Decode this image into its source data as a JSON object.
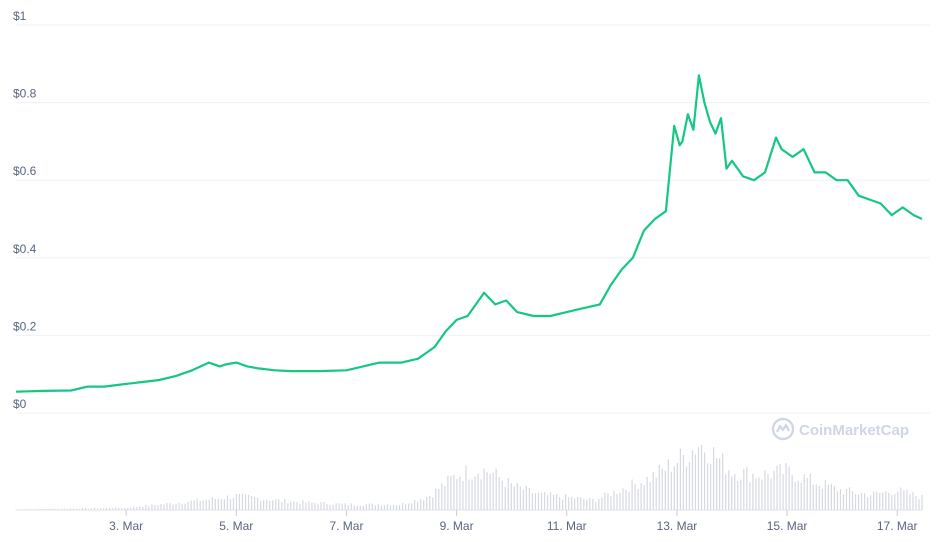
{
  "watermark": {
    "text": "CoinMarketCap",
    "color": "#cfd6e4"
  },
  "colors": {
    "line": "#16c784",
    "grid": "#eef0f4",
    "volume": "#d5d9e0",
    "axis_text": "#58667e"
  },
  "chart_data": {
    "type": "line",
    "title": "",
    "xlabel": "",
    "ylabel": "",
    "y_ticks": [
      "$0",
      "$0.2",
      "$0.4",
      "$0.6",
      "$0.8",
      "$1"
    ],
    "y_tick_values": [
      0,
      0.2,
      0.4,
      0.6,
      0.8,
      1.0
    ],
    "ylim": [
      0,
      1.0
    ],
    "x_ticks": [
      "3. Mar",
      "5. Mar",
      "7. Mar",
      "9. Mar",
      "11. Mar",
      "13. Mar",
      "15. Mar",
      "17. Mar"
    ],
    "x_tick_days": [
      3,
      5,
      7,
      9,
      11,
      13,
      15,
      17
    ],
    "xlim_day": [
      1.0,
      17.45
    ],
    "grid": true,
    "series": [
      {
        "x_day": [
          1.0,
          1.5,
          2.0,
          2.3,
          2.6,
          3.0,
          3.3,
          3.6,
          3.9,
          4.2,
          4.5,
          4.7,
          4.8,
          5.0,
          5.2,
          5.4,
          5.7,
          6.0,
          6.5,
          7.0,
          7.3,
          7.6,
          8.0,
          8.3,
          8.6,
          8.8,
          9.0,
          9.2,
          9.4,
          9.5,
          9.7,
          9.9,
          10.1,
          10.4,
          10.7,
          11.0,
          11.3,
          11.6,
          11.8,
          12.0,
          12.2,
          12.4,
          12.6,
          12.8,
          12.95,
          13.05,
          13.1,
          13.2,
          13.3,
          13.4,
          13.5,
          13.6,
          13.7,
          13.8,
          13.9,
          14.0,
          14.2,
          14.4,
          14.6,
          14.8,
          14.9,
          15.1,
          15.3,
          15.5,
          15.7,
          15.9,
          16.1,
          16.3,
          16.5,
          16.7,
          16.9,
          17.1,
          17.3,
          17.45
        ],
        "y": [
          0.055,
          0.057,
          0.058,
          0.068,
          0.068,
          0.075,
          0.08,
          0.085,
          0.095,
          0.11,
          0.13,
          0.12,
          0.125,
          0.13,
          0.12,
          0.115,
          0.11,
          0.108,
          0.108,
          0.11,
          0.12,
          0.13,
          0.13,
          0.14,
          0.17,
          0.21,
          0.24,
          0.25,
          0.29,
          0.31,
          0.28,
          0.29,
          0.26,
          0.25,
          0.25,
          0.26,
          0.27,
          0.28,
          0.33,
          0.37,
          0.4,
          0.47,
          0.5,
          0.52,
          0.74,
          0.69,
          0.7,
          0.77,
          0.73,
          0.87,
          0.8,
          0.75,
          0.72,
          0.76,
          0.63,
          0.65,
          0.61,
          0.6,
          0.62,
          0.71,
          0.68,
          0.66,
          0.68,
          0.62,
          0.62,
          0.6,
          0.6,
          0.56,
          0.55,
          0.54,
          0.51,
          0.53,
          0.51,
          0.5
        ]
      }
    ],
    "volume": {
      "x_day": [
        1.0,
        3.0,
        4.5,
        5.0,
        6.0,
        7.0,
        8.0,
        8.5,
        9.0,
        9.4,
        9.6,
        10.0,
        10.5,
        11.0,
        11.5,
        12.0,
        12.5,
        13.0,
        13.2,
        13.4,
        13.6,
        14.0,
        14.5,
        15.0,
        15.5,
        16.0,
        16.5,
        17.0,
        17.45
      ],
      "relative": [
        0.01,
        0.03,
        0.15,
        0.2,
        0.12,
        0.08,
        0.08,
        0.2,
        0.5,
        0.58,
        0.55,
        0.35,
        0.22,
        0.18,
        0.14,
        0.3,
        0.45,
        0.7,
        0.8,
        0.95,
        0.85,
        0.55,
        0.5,
        0.55,
        0.4,
        0.28,
        0.22,
        0.28,
        0.18
      ]
    }
  }
}
